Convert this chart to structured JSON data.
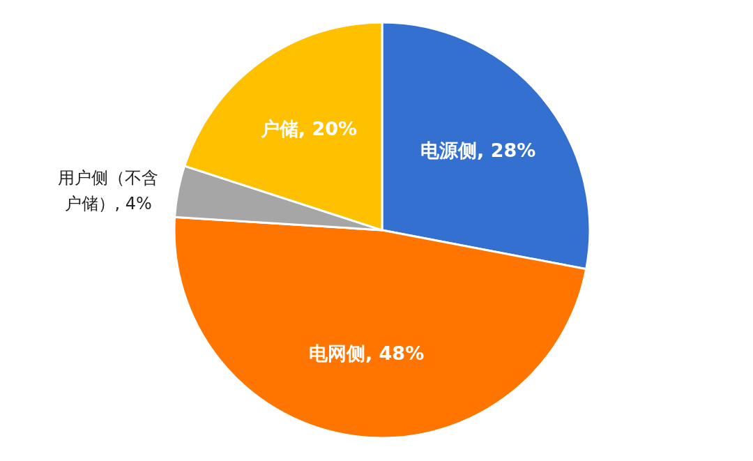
{
  "chart_data": {
    "type": "pie",
    "categories": [
      "电源侧",
      "电网侧",
      "用户侧（不含户储）",
      "户储"
    ],
    "values": [
      28,
      48,
      4,
      20
    ],
    "colors": [
      "#3470cf",
      "#ff7500",
      "#a6a6a6",
      "#ffc000"
    ],
    "value_labels": [
      "28%",
      "48%",
      "4%",
      "20%"
    ]
  }
}
